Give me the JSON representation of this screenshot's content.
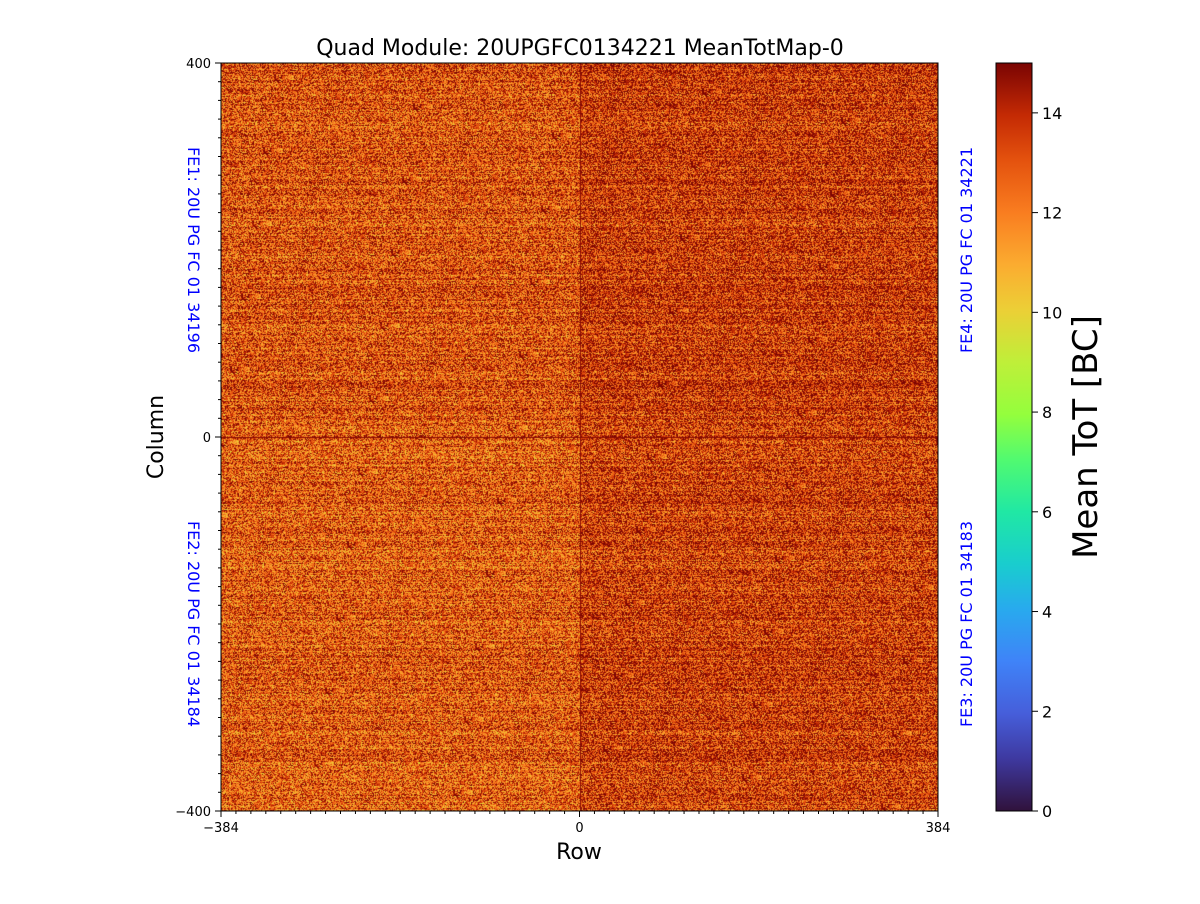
{
  "chart_data": {
    "type": "heatmap",
    "title": "Quad Module: 20UPGFC0134221 MeanTotMap-0",
    "xlabel": "Row",
    "ylabel": "Column",
    "xlim": [
      -384,
      384
    ],
    "ylim": [
      -400,
      400
    ],
    "x_ticks": [
      {
        "value": -384,
        "label": "−384"
      },
      {
        "value": 0,
        "label": "0"
      },
      {
        "value": 384,
        "label": "384"
      }
    ],
    "y_ticks": [
      {
        "value": 400,
        "label": "400"
      },
      {
        "value": 0,
        "label": "0"
      },
      {
        "value": -400,
        "label": "−400"
      }
    ],
    "colorbar": {
      "label": "Mean ToT [BC]",
      "range": [
        0,
        15
      ],
      "colormap": "turbo",
      "ticks": [
        {
          "value": 0,
          "label": "0"
        },
        {
          "value": 2,
          "label": "2"
        },
        {
          "value": 4,
          "label": "4"
        },
        {
          "value": 6,
          "label": "6"
        },
        {
          "value": 8,
          "label": "8"
        },
        {
          "value": 10,
          "label": "10"
        },
        {
          "value": 12,
          "label": "12"
        },
        {
          "value": 14,
          "label": "14"
        }
      ]
    },
    "grid": false,
    "front_ends": [
      {
        "id": "FE1",
        "label": "FE1: 20U PG FC 01 34196",
        "quadrant": "top-left",
        "typical_mean_tot": 13.0
      },
      {
        "id": "FE2",
        "label": "FE2: 20U PG FC 01 34184",
        "quadrant": "bottom-left",
        "typical_mean_tot": 12.8
      },
      {
        "id": "FE3",
        "label": "FE3: 20U PG FC 01 34183",
        "quadrant": "bottom-right",
        "typical_mean_tot": 13.5
      },
      {
        "id": "FE4",
        "label": "FE4: 20U PG FC 01 34221",
        "quadrant": "top-right",
        "typical_mean_tot": 13.6
      }
    ]
  }
}
